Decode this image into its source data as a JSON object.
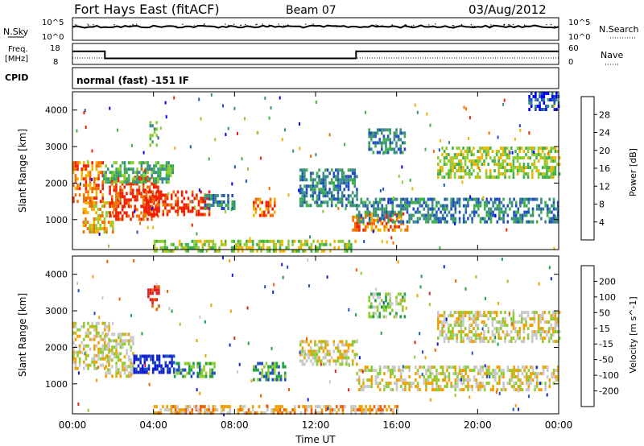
{
  "header": {
    "station": "Fort Hays East (fitACF)",
    "beam": "Beam 07",
    "date": "03/Aug/2012"
  },
  "noise_panel": {
    "left_label": "N.Sky",
    "right_label": "N.Search",
    "left_ticks": [
      "10^5",
      "10^0"
    ],
    "right_ticks": [
      "10^5",
      "10^0"
    ]
  },
  "freq_panel": {
    "left_label_1": "Freq.",
    "left_label_2": "[MHz]",
    "right_label": "Nave",
    "left_ticks": [
      "18",
      "8"
    ],
    "right_ticks": [
      "60",
      "0"
    ],
    "freq_steps_hours": [
      [
        0,
        14.5
      ],
      [
        1.6,
        14.5
      ],
      [
        1.6,
        10.5
      ],
      [
        14.0,
        10.5
      ],
      [
        14.0,
        14.5
      ],
      [
        24,
        14.5
      ]
    ]
  },
  "cpid_panel": {
    "label": "CPID",
    "text": "normal (fast) -151 IF"
  },
  "power_panel": {
    "ylabel": "Slant Range [km]",
    "yticks": [
      "4000",
      "3000",
      "2000",
      "1000"
    ],
    "colorbar_label": "Power [dB]",
    "colorbar_ticks": [
      "28",
      "24",
      "20",
      "16",
      "12",
      "8",
      "4"
    ],
    "colors": [
      "#0000ff",
      "#2050c0",
      "#3a8a8a",
      "#3cb04a",
      "#8ccc30",
      "#f0b400",
      "#f07000",
      "#f02000"
    ]
  },
  "velocity_panel": {
    "ylabel": "Slant Range [km]",
    "yticks": [
      "4000",
      "3000",
      "2000",
      "1000"
    ],
    "colorbar_label": "Velocity [m s^-1]",
    "colorbar_ticks": [
      "200",
      "100",
      "50",
      "15",
      "-15",
      "-50",
      "-100",
      "-200"
    ],
    "colors": [
      "#1020d0",
      "#2050c0",
      "#20a040",
      "#8ccc30",
      "#c8c8c8",
      "#f0a000",
      "#f06000",
      "#e02020"
    ]
  },
  "x_axis": {
    "label": "Time UT",
    "ticks": [
      "00:00",
      "04:00",
      "08:00",
      "12:00",
      "16:00",
      "20:00",
      "00:00"
    ]
  },
  "chart_data": {
    "type": "heatmap",
    "title": "Fort Hays East (fitACF)",
    "xlabel": "Time UT",
    "ylabel": "Slant Range [km]",
    "xlim": [
      0,
      24
    ],
    "ylim": [
      180,
      4500
    ],
    "regions_power": [
      {
        "t0": 0.0,
        "t1": 1.5,
        "r0": 1500,
        "r1": 2600,
        "level": 6
      },
      {
        "t0": 0.5,
        "t1": 2.0,
        "r0": 700,
        "r1": 1500,
        "level": 5
      },
      {
        "t0": 1.8,
        "t1": 4.2,
        "r0": 1000,
        "r1": 2200,
        "level": 7
      },
      {
        "t0": 3.5,
        "t1": 6.8,
        "r0": 1100,
        "r1": 1800,
        "level": 7
      },
      {
        "t0": 1.5,
        "t1": 5.0,
        "r0": 2000,
        "r1": 2600,
        "level": 3
      },
      {
        "t0": 3.8,
        "t1": 4.2,
        "r0": 3000,
        "r1": 3700,
        "level": 3
      },
      {
        "t0": 6.5,
        "t1": 8.0,
        "r0": 1300,
        "r1": 1700,
        "level": 2
      },
      {
        "t0": 8.9,
        "t1": 10.0,
        "r0": 1100,
        "r1": 1600,
        "level": 6
      },
      {
        "t0": 11.2,
        "t1": 14.0,
        "r0": 1400,
        "r1": 2400,
        "level": 2
      },
      {
        "t0": 13.8,
        "t1": 16.5,
        "r0": 700,
        "r1": 1200,
        "level": 6
      },
      {
        "t0": 14.0,
        "t1": 24.0,
        "r0": 900,
        "r1": 1600,
        "level": 2
      },
      {
        "t0": 18.0,
        "t1": 24.0,
        "r0": 2200,
        "r1": 3000,
        "level": 4
      },
      {
        "t0": 22.5,
        "t1": 24.0,
        "r0": 4000,
        "r1": 4500,
        "level": 1
      },
      {
        "t0": 4.0,
        "t1": 14.0,
        "r0": 180,
        "r1": 450,
        "level": 4
      },
      {
        "t0": 14.6,
        "t1": 16.4,
        "r0": 2800,
        "r1": 3500,
        "level": 2
      }
    ],
    "regions_velocity": [
      {
        "t0": 0.0,
        "t1": 1.8,
        "r0": 1400,
        "r1": 2700,
        "level": 4
      },
      {
        "t0": 1.6,
        "t1": 3.0,
        "r0": 1200,
        "r1": 2400,
        "level": 4
      },
      {
        "t0": 3.0,
        "t1": 5.0,
        "r0": 1300,
        "r1": 1800,
        "level": 0
      },
      {
        "t0": 5.0,
        "t1": 7.0,
        "r0": 1200,
        "r1": 1600,
        "level": 2
      },
      {
        "t0": 3.7,
        "t1": 4.3,
        "r0": 3000,
        "r1": 3700,
        "level": 7
      },
      {
        "t0": 8.9,
        "t1": 10.5,
        "r0": 1100,
        "r1": 1600,
        "level": 2
      },
      {
        "t0": 11.2,
        "t1": 14.0,
        "r0": 1500,
        "r1": 2200,
        "level": 4
      },
      {
        "t0": 14.0,
        "t1": 24.0,
        "r0": 800,
        "r1": 1500,
        "level": 4
      },
      {
        "t0": 18.0,
        "t1": 24.0,
        "r0": 2200,
        "r1": 3000,
        "level": 4
      },
      {
        "t0": 4.0,
        "t1": 16.0,
        "r0": 180,
        "r1": 420,
        "level": 5
      },
      {
        "t0": 14.6,
        "t1": 16.4,
        "r0": 2800,
        "r1": 3500,
        "level": 3
      }
    ]
  }
}
